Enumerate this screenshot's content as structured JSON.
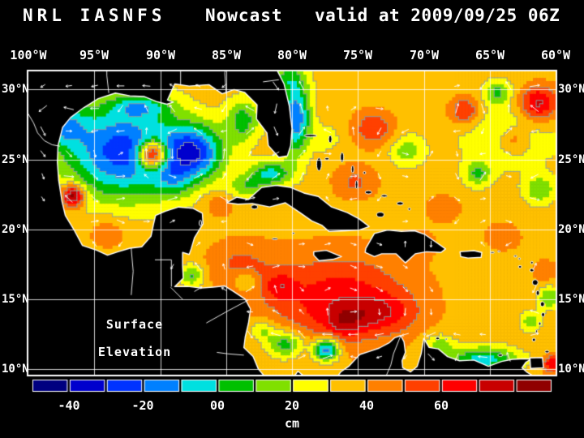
{
  "header": {
    "left": "NRL IASNFS",
    "center": "Nowcast",
    "right": "valid at 2009/09/25 06Z"
  },
  "axes": {
    "lon_labels": [
      "100°W",
      "95°W",
      "90°W",
      "85°W",
      "80°W",
      "75°W",
      "70°W",
      "65°W",
      "60°W"
    ],
    "lat_labels": [
      "30°N",
      "25°N",
      "20°N",
      "15°N",
      "10°N"
    ]
  },
  "annotation": {
    "line1": "Surface",
    "line2": "Elevation"
  },
  "colorbar": {
    "unit": "cm",
    "tick_labels": [
      "-40",
      "-20",
      "00",
      "20",
      "40",
      "60"
    ],
    "colors": [
      "#000080",
      "#0000cd",
      "#0033ff",
      "#0080ff",
      "#00e0e0",
      "#00c000",
      "#80e000",
      "#ffff00",
      "#ffc000",
      "#ff8000",
      "#ff4000",
      "#ff0000",
      "#c80000",
      "#900000"
    ]
  },
  "chart_data": {
    "type": "heatmap",
    "title": "NRL IASNFS Nowcast valid at 2009/09/25 06Z",
    "variable": "Surface Elevation",
    "unit": "cm",
    "lon_range_degW": [
      100,
      60
    ],
    "lat_range_degN": [
      9.6,
      31.3
    ],
    "lon_ticks_degW": [
      100,
      95,
      90,
      85,
      80,
      75,
      70,
      65,
      60
    ],
    "lat_ticks_degN": [
      30,
      25,
      20,
      15,
      10
    ],
    "palette_range_cm": [
      -50,
      90
    ],
    "palette_step_cm": 10,
    "contour_interval_cm": 20,
    "field_base_cm": 36,
    "field_blobs": [
      [
        92.8,
        25.6,
        4.6,
        3.4,
        -62
      ],
      [
        87.4,
        25.5,
        2.2,
        1.9,
        -55
      ],
      [
        90.6,
        25.35,
        1.05,
        0.95,
        78
      ],
      [
        96.6,
        22.4,
        0.85,
        0.8,
        58
      ],
      [
        83.7,
        27.8,
        1.3,
        1.6,
        -30
      ],
      [
        79.7,
        28.0,
        1.1,
        2.6,
        -55
      ],
      [
        81.6,
        24.0,
        1.6,
        0.9,
        -38
      ],
      [
        83.4,
        23.0,
        1.5,
        0.9,
        -22
      ],
      [
        80.6,
        30.8,
        1.5,
        1.0,
        -22
      ],
      [
        94.0,
        19.8,
        1.6,
        1.2,
        12
      ],
      [
        76.5,
        15.0,
        5.5,
        3.2,
        30
      ],
      [
        84.0,
        17.5,
        2.5,
        1.8,
        14
      ],
      [
        73.5,
        14.0,
        2.8,
        1.3,
        20
      ],
      [
        80.9,
        15.9,
        1.2,
        1.0,
        18
      ],
      [
        76.0,
        13.3,
        1.3,
        1.0,
        16
      ],
      [
        77.4,
        11.4,
        0.95,
        0.8,
        -58
      ],
      [
        87.6,
        16.7,
        0.9,
        0.8,
        -28
      ],
      [
        65.5,
        10.7,
        2.6,
        0.9,
        -42
      ],
      [
        68.8,
        11.7,
        1.1,
        0.8,
        -22
      ],
      [
        60.3,
        10.4,
        0.7,
        0.6,
        34
      ],
      [
        73.8,
        27.2,
        1.5,
        1.2,
        24
      ],
      [
        75.2,
        23.4,
        1.6,
        1.2,
        16
      ],
      [
        71.3,
        25.6,
        1.3,
        1.1,
        -22
      ],
      [
        77.4,
        26.5,
        1.0,
        0.9,
        -14
      ],
      [
        63.5,
        27.0,
        4.5,
        3.0,
        -14
      ],
      [
        61.3,
        29.0,
        1.5,
        1.3,
        42
      ],
      [
        66.9,
        28.5,
        1.2,
        1.0,
        30
      ],
      [
        64.4,
        29.8,
        0.95,
        0.8,
        -24
      ],
      [
        65.9,
        24.0,
        1.0,
        0.9,
        -26
      ],
      [
        61.2,
        22.8,
        1.2,
        1.0,
        -24
      ],
      [
        63.1,
        26.4,
        1.1,
        0.9,
        18
      ],
      [
        68.5,
        21.5,
        1.3,
        1.0,
        12
      ],
      [
        64.0,
        19.5,
        1.5,
        1.1,
        10
      ],
      [
        60.5,
        15.1,
        0.9,
        0.8,
        -26
      ],
      [
        61.9,
        13.4,
        0.8,
        0.7,
        -22
      ],
      [
        60.8,
        17.0,
        0.9,
        0.8,
        12
      ],
      [
        70.5,
        19.0,
        1.4,
        1.0,
        10
      ],
      [
        85.5,
        21.8,
        1.2,
        0.9,
        12
      ],
      [
        97.5,
        27.5,
        1.8,
        1.5,
        -35
      ],
      [
        91.5,
        28.8,
        2.2,
        0.8,
        -25
      ],
      [
        89.0,
        23.5,
        1.5,
        1.2,
        -18
      ],
      [
        80.5,
        11.8,
        1.4,
        1.0,
        -35
      ],
      [
        82.3,
        12.8,
        1.0,
        0.8,
        -20
      ],
      [
        83.5,
        16.3,
        0.8,
        0.7,
        -20
      ]
    ]
  }
}
